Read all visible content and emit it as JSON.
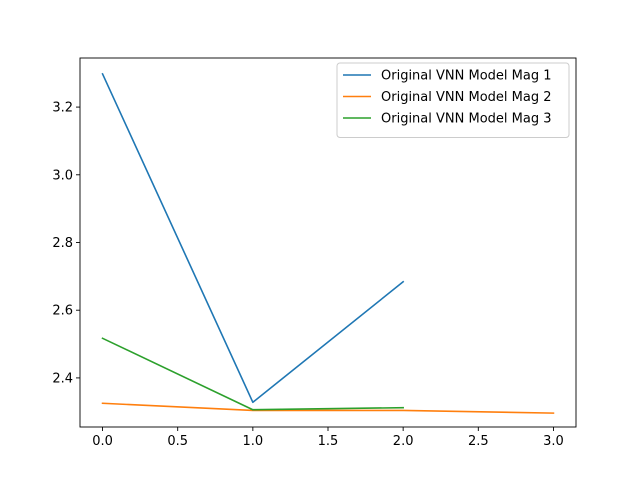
{
  "chart_data": {
    "type": "line",
    "title": "",
    "xlabel": "",
    "ylabel": "",
    "xlim": [
      -0.15,
      3.15
    ],
    "ylim": [
      2.255,
      3.345
    ],
    "xticks": [
      0.0,
      0.5,
      1.0,
      1.5,
      2.0,
      2.5,
      3.0
    ],
    "xtick_labels": [
      "0.0",
      "0.5",
      "1.0",
      "1.5",
      "2.0",
      "2.5",
      "3.0"
    ],
    "yticks": [
      2.4,
      2.6,
      2.8,
      3.0,
      3.2
    ],
    "ytick_labels": [
      "2.4",
      "2.6",
      "2.8",
      "3.0",
      "3.2"
    ],
    "grid": false,
    "legend_position": "top-right",
    "series": [
      {
        "name": "Original VNN Model Mag 1",
        "color": "#1f77b4",
        "x": [
          0,
          1,
          2
        ],
        "y": [
          3.298,
          2.328,
          2.684
        ]
      },
      {
        "name": "Original VNN Model Mag 2",
        "color": "#ff7f0e",
        "x": [
          0,
          1,
          2,
          3
        ],
        "y": [
          2.325,
          2.304,
          2.304,
          2.296
        ]
      },
      {
        "name": "Original VNN Model Mag 3",
        "color": "#2ca02c",
        "x": [
          0,
          1,
          2
        ],
        "y": [
          2.517,
          2.306,
          2.312
        ]
      }
    ]
  }
}
